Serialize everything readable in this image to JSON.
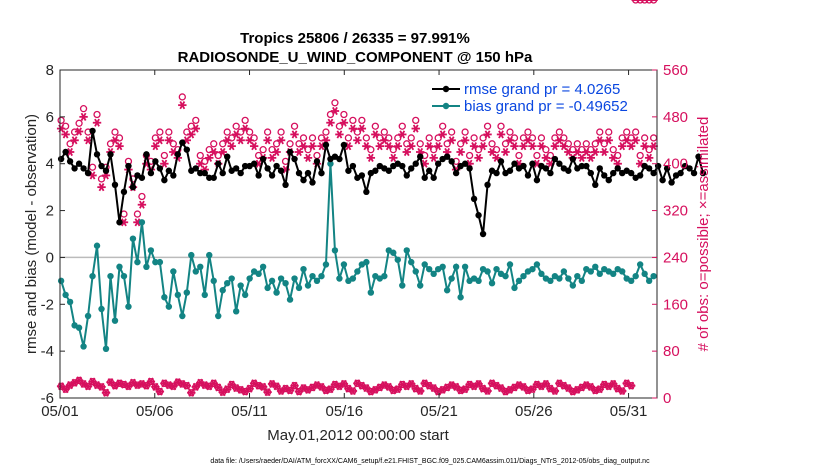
{
  "chart_data": {
    "type": "line",
    "title": [
      "Tropics 25806 / 26335 = 97.991%",
      "RADIOSONDE_U_WIND_COMPONENT @ 150 hPa"
    ],
    "xlabel": "May.01,2012 00:00:00 start",
    "ylabel_left": "rmse and bias (model - observation)",
    "ylabel_right": "# of obs: o=possible; ×=assimilated",
    "footer": "data file: /Users/raeder/DAI/ATM_forcXX/CAM6_setup/f.e21.FHIST_BGC.f09_025.CAM6assim.011/Diags_NTrS_2012-05/obs_diag_output.nc",
    "xlim": [
      0.0,
      31.5
    ],
    "ylim_left": [
      -6,
      8
    ],
    "ylim_right": [
      0,
      560
    ],
    "x_ticks": [
      0,
      5,
      10,
      15,
      20,
      25,
      30
    ],
    "x_tick_labels": [
      "05/01",
      "05/06",
      "05/11",
      "05/16",
      "05/21",
      "05/26",
      "05/31"
    ],
    "y_ticks_left": [
      -6,
      -4,
      -2,
      0,
      2,
      4,
      6,
      8
    ],
    "y_tick_labels_left": [
      "-6",
      "-4",
      "-2",
      "0",
      "2",
      "4",
      "6",
      "8"
    ],
    "y_ticks_right": [
      0,
      80,
      160,
      240,
      320,
      400,
      480,
      560
    ],
    "y_tick_labels_right": [
      "0",
      "80",
      "160",
      "240",
      "320",
      "400",
      "480",
      "560"
    ],
    "legend": [
      {
        "label": "rmse grand pr = 4.0265",
        "color": "#000000"
      },
      {
        "label": "bias grand pr = -0.49652",
        "color": "#138484"
      }
    ],
    "colors": {
      "rmse": "#000000",
      "bias": "#138484",
      "obs": "#d6105e",
      "zero_line": "#bbbbbb"
    },
    "series": [
      {
        "name": "rmse",
        "values": [
          4.2,
          3.6,
          4.5,
          2.0,
          4.1,
          2.1,
          3.8,
          1.9,
          4.0,
          4.3,
          3.8,
          4.5,
          3.6,
          4.8,
          5.4,
          4.7,
          4.4,
          3.5,
          3.9,
          3.6,
          3.7,
          3.9,
          4.4,
          4.3,
          3.1,
          3.9,
          1.5,
          3.9,
          2.8,
          3.6,
          3.9,
          3.8,
          3.0,
          4.1,
          3.5,
          4.2,
          3.4,
          3.8,
          4.4,
          4.3,
          3.6,
          3.4,
          4.1,
          3.5,
          3.8,
          2.6,
          3.3,
          3.5,
          3.7,
          4.3,
          3.5,
          4.6,
          4.4,
          4.2,
          4.9,
          3.7,
          4.6,
          6.0,
          3.7,
          4.0,
          3.8,
          3.9,
          3.6,
          2.6,
          3.6,
          3.0,
          3.4,
          2.5,
          3.4,
          2.8,
          4.0,
          3.8,
          3.6,
          3.9,
          4.3,
          3.7,
          3.7,
          2.9,
          3.8,
          3.3,
          3.6,
          2.5,
          3.9,
          2.9,
          3.9,
          3.8,
          4.0,
          4.3,
          3.5,
          3.6,
          4.2,
          3.7,
          3.8,
          3.7,
          3.5,
          3.6,
          3.9,
          4.1,
          3.7,
          3.4,
          3.1,
          3.8,
          4.5,
          2.6,
          4.2,
          3.6,
          3.6,
          3.9,
          3.3,
          3.8,
          3.6,
          3.9,
          3.2,
          3.9,
          4.1,
          3.4,
          3.6,
          3.9,
          4.8,
          5.9,
          4.2,
          6.1,
          4.3,
          4.8,
          4.2,
          3.5,
          4.8,
          4.0,
          3.7,
          3.6,
          3.9,
          4.1,
          3.4,
          3.8,
          3.5,
          4.0,
          2.8,
          3.0,
          3.6,
          2.5,
          3.7,
          3.0,
          3.9,
          3.0,
          3.8,
          3.2,
          3.7,
          3.3,
          3.9,
          4.1,
          4.0,
          3.2,
          3.9,
          4.1,
          3.5,
          2.8,
          3.8,
          3.5,
          4.0,
          3.7,
          4.3,
          3.8,
          3.4,
          3.6,
          3.7,
          3.9,
          3.4,
          3.2,
          4.0,
          3.5,
          4.2,
          3.8,
          4.3,
          3.8,
          4.1,
          3.7,
          3.6,
          3.5,
          3.9,
          3.8,
          4.0,
          3.3,
          3.8,
          3.4,
          2.5,
          3.6,
          1.8,
          3.2,
          1.0,
          3.6,
          3.1,
          3.6,
          3.7,
          4.0,
          3.6,
          3.5,
          4.1,
          4.5,
          3.6,
          3.9,
          3.7,
          4.2,
          4.0,
          3.2,
          3.8,
          3.6,
          3.9,
          3.8,
          3.5,
          3.6,
          4.0,
          3.7,
          3.3,
          4.5,
          3.9,
          3.5,
          3.8,
          4.3,
          3.6,
          5.2,
          4.2,
          4.3,
          4.0,
          3.6,
          3.8,
          4.3,
          3.7,
          3.8,
          4.2,
          3.6,
          3.8,
          3.4,
          3.9,
          3.6,
          3.9,
          3.4,
          3.6,
          3.9,
          3.1,
          3.5,
          3.8,
          4.0,
          3.5,
          3.8,
          3.3,
          3.9,
          3.6,
          3.4,
          3.8,
          4.1,
          3.6,
          3.2,
          3.7,
          3.5,
          3.6,
          3.9,
          3.4,
          3.8,
          3.5,
          3.3,
          3.9,
          3.0,
          3.8,
          3.3,
          3.6,
          3.6,
          3.9,
          4.2,
          3.3,
          3.5,
          3.8,
          3.7,
          3.2,
          3.9,
          3.5,
          3.8,
          3.6,
          3.4,
          3.9,
          4.0,
          3.8,
          3.5,
          3.6,
          3.7,
          4.3,
          3.9,
          3.6,
          3.8
        ]
      },
      {
        "name": "bias",
        "values": [
          -1.0,
          -0.8,
          -1.6,
          -0.6,
          -1.9,
          0.1,
          -2.9,
          -4.4,
          -3.0,
          -2.0,
          -3.8,
          -5.2,
          -2.5,
          -3.1,
          -0.8,
          -0.6,
          0.5,
          -1.1,
          -2.2,
          -0.6,
          -3.9,
          -1.1,
          -0.8,
          -3.3,
          -2.7,
          -1.2,
          -0.4,
          -1.8,
          -0.8,
          -0.1,
          -2.1,
          -1.5,
          0.8,
          -0.5,
          -0.2,
          -1.7,
          1.5,
          -0.3,
          -0.4,
          -0.8,
          0.3,
          -2.2,
          -0.2,
          0.5,
          -0.2,
          -0.8,
          -1.7,
          -1.0,
          -2.1,
          -0.8,
          -0.6,
          0.5,
          -1.6,
          -1.0,
          -2.5,
          -0.9,
          -1.5,
          -0.4,
          0.1,
          -2.5,
          -0.6,
          -0.8,
          -0.4,
          -0.9,
          -1.6,
          -0.5,
          0.1,
          -0.2,
          -1.0,
          -0.8,
          -2.5,
          -0.7,
          -1.4,
          -0.6,
          -1.1,
          -1.5,
          -0.9,
          -0.3,
          -2.3,
          -0.7,
          -1.2,
          -0.4,
          -1.6,
          -0.5,
          -0.9,
          -1.8,
          -0.6,
          -1.2,
          -0.7,
          -1.9,
          -0.4,
          -0.8,
          -1.3,
          -0.5,
          -1.0,
          -0.7,
          -1.5,
          -0.6,
          -0.9,
          -0.3,
          -1.1,
          -0.7,
          -1.8,
          -0.6,
          -0.9,
          -0.4,
          -1.3,
          -0.6,
          -0.5,
          -0.9,
          -1.2,
          -0.4,
          -0.8,
          -0.7,
          -1.0,
          -0.6,
          -0.8,
          -0.9,
          -0.3,
          -1.6,
          4.0,
          -1.2,
          0.3,
          -0.2,
          -0.9,
          -0.6,
          -0.3,
          -0.4,
          -1.0,
          -0.4,
          -0.9,
          -1.4,
          -0.6,
          -0.9,
          -0.3,
          -0.4,
          -0.2,
          -1.1,
          -1.5,
          0.2,
          -0.8,
          -0.3,
          -0.9,
          -0.1,
          -0.8,
          -1.1,
          0.3,
          -0.1,
          0.2,
          -0.6,
          -0.1,
          -0.8,
          -1.2,
          -0.5,
          0.3,
          -0.4,
          -0.2,
          -1.5,
          -0.6,
          -0.3,
          -1.2,
          -0.8,
          -0.3,
          -0.9,
          -0.5,
          -1.9,
          -0.7,
          -0.9,
          -0.5,
          -1.2,
          -0.4,
          -1.0,
          -1.4,
          -0.6,
          -0.9,
          -0.8,
          -0.4,
          -1.1,
          -1.7,
          -0.7,
          -0.4,
          -1.3,
          -1.0,
          -0.6,
          -0.9,
          -0.3,
          -1.0,
          -0.8,
          -0.5,
          -1.3,
          -0.6,
          -1.8,
          -1.1,
          -0.9,
          -0.5,
          -1.1,
          -0.7,
          0.6,
          -0.8,
          -1.2,
          -0.3,
          -0.6,
          -1.3,
          -0.7,
          -1.0,
          -0.4,
          -0.8,
          -1.4,
          -0.6,
          -0.9,
          -0.5,
          -0.2,
          -0.3,
          -1.2,
          -0.7,
          -0.4,
          -0.9,
          -0.6,
          -1.0,
          -0.3,
          -0.8,
          -0.5,
          -0.9,
          -1.1,
          -0.6,
          -0.4,
          -0.9,
          -0.7,
          -1.2,
          -0.5,
          -0.8,
          -0.3,
          -1.0,
          -0.7,
          -0.5,
          -0.9,
          -0.6,
          -1.1,
          -0.4,
          -0.8,
          -0.7,
          -1.0,
          -0.5,
          -0.9,
          -0.6,
          -0.3,
          -0.7,
          -0.8,
          -0.5,
          -1.2,
          -0.6,
          -0.4,
          -0.9,
          -0.7,
          -1.0,
          -0.5,
          -0.8,
          -0.6,
          -0.3,
          -0.9,
          -0.7,
          -0.5,
          -1.0,
          -0.6,
          -0.8
        ]
      },
      {
        "name": "obs_possible",
        "values": [
          460,
          470,
          450,
          400,
          420,
          430,
          440,
          410,
          455,
          450,
          480,
          420,
          440,
          410,
          380,
          440,
          470,
          410,
          360,
          370,
          380,
          350,
          420,
          400,
          440,
          370,
          430,
          410,
          300,
          330,
          390,
          370,
          360,
          280,
          300,
          350,
          330,
          310,
          400,
          380,
          390,
          410,
          430,
          420,
          440,
          460,
          400,
          430,
          440,
          410,
          420,
          430,
          410,
          440,
          500,
          470,
          440,
          430,
          450,
          420,
          460,
          430,
          400,
          410,
          390,
          380,
          410,
          430,
          420,
          440,
          400,
          390,
          420,
          430,
          440,
          410,
          430,
          420,
          450,
          410,
          440,
          430,
          460,
          420,
          440,
          450,
          430,
          410,
          400,
          380,
          410,
          430,
          440,
          420,
          410,
          400,
          420,
          430,
          440,
          410,
          390,
          400,
          420,
          430,
          450,
          440,
          420,
          410,
          430,
          400,
          410,
          440,
          430,
          420,
          400,
          410,
          430,
          420,
          440,
          460,
          470,
          450,
          490,
          480,
          450,
          460,
          470,
          440,
          430,
          450,
          460,
          420,
          440,
          470,
          460,
          450,
          430,
          420,
          410,
          440,
          450,
          460,
          430,
          420,
          440,
          450,
          430,
          420,
          410,
          440,
          430,
          460,
          450,
          440,
          420,
          410,
          430,
          450,
          460,
          440,
          420,
          410,
          400,
          420,
          430,
          440,
          410,
          420,
          430,
          440,
          450,
          460,
          420,
          430,
          440,
          410,
          390,
          400,
          420,
          430,
          440,
          410,
          400,
          420,
          430,
          440,
          410,
          420,
          430,
          440,
          450,
          410,
          420,
          400,
          410,
          440,
          450,
          430,
          420,
          410,
          440,
          460,
          430,
          420,
          400,
          410,
          430,
          420,
          440,
          450,
          430,
          410,
          400,
          420,
          430,
          440,
          410,
          420,
          400,
          410,
          430,
          420,
          440,
          450,
          430,
          410,
          420,
          400,
          410,
          430,
          420,
          440,
          410,
          430,
          420,
          440,
          410,
          400,
          420,
          430,
          440,
          410,
          420,
          430,
          440,
          450,
          410,
          420,
          400,
          410,
          430,
          420,
          440,
          410,
          430,
          420,
          440,
          410,
          400,
          420,
          430,
          440,
          410,
          420,
          430,
          440
        ]
      },
      {
        "name": "obs_assimilated",
        "values": [
          20,
          25,
          15,
          18,
          22,
          10,
          26,
          14,
          30,
          12,
          24,
          8,
          20,
          16,
          28,
          11,
          22,
          15,
          19,
          24,
          9,
          18,
          27,
          13,
          21,
          16,
          25,
          10,
          23,
          17,
          20,
          14,
          26,
          12,
          22,
          18,
          24,
          9,
          21,
          15,
          28,
          13,
          19,
          23,
          11,
          17,
          25,
          14,
          22,
          10,
          20,
          16,
          27,
          12,
          24,
          18,
          21,
          15,
          9,
          23,
          19,
          14,
          26,
          11,
          22,
          17,
          20,
          13,
          25,
          16,
          18,
          21,
          10,
          24,
          15,
          19,
          23,
          12,
          17,
          20,
          14,
          26,
          11,
          22,
          16,
          18,
          25,
          13,
          21,
          15,
          19,
          23,
          10,
          17,
          24,
          14,
          20,
          18,
          12,
          22,
          16,
          25,
          13,
          19,
          21,
          15,
          11,
          23,
          17,
          20,
          14,
          24,
          18,
          12,
          22,
          16,
          19,
          25,
          13,
          21,
          15,
          17,
          23,
          11,
          20,
          14,
          24,
          18,
          16,
          22,
          12,
          19,
          25,
          13,
          21,
          15,
          17,
          23,
          11,
          20,
          14,
          24,
          18,
          16,
          22,
          12,
          19,
          25,
          13,
          21,
          15,
          17,
          23,
          11,
          20,
          14,
          24,
          18,
          16,
          22,
          12,
          19,
          25,
          13,
          21,
          15,
          17,
          23,
          11,
          20,
          14,
          24,
          18,
          16,
          22,
          12,
          19,
          25,
          13,
          21,
          15,
          17,
          23,
          11,
          20,
          14,
          24,
          18,
          16,
          22,
          12,
          19,
          25,
          13,
          21,
          15,
          17,
          23,
          11,
          20,
          14,
          24,
          18,
          16,
          22,
          12,
          19,
          25,
          13,
          21,
          15,
          17,
          23,
          11,
          20,
          14,
          24,
          18,
          16,
          22,
          12,
          19,
          25,
          13,
          21,
          15,
          17,
          23,
          11,
          20,
          14,
          24,
          18,
          16,
          22,
          12,
          19,
          25,
          13,
          21,
          15,
          17,
          23,
          11,
          20,
          14,
          24,
          18,
          16,
          22,
          12,
          19,
          25,
          13,
          21
        ]
      }
    ]
  }
}
